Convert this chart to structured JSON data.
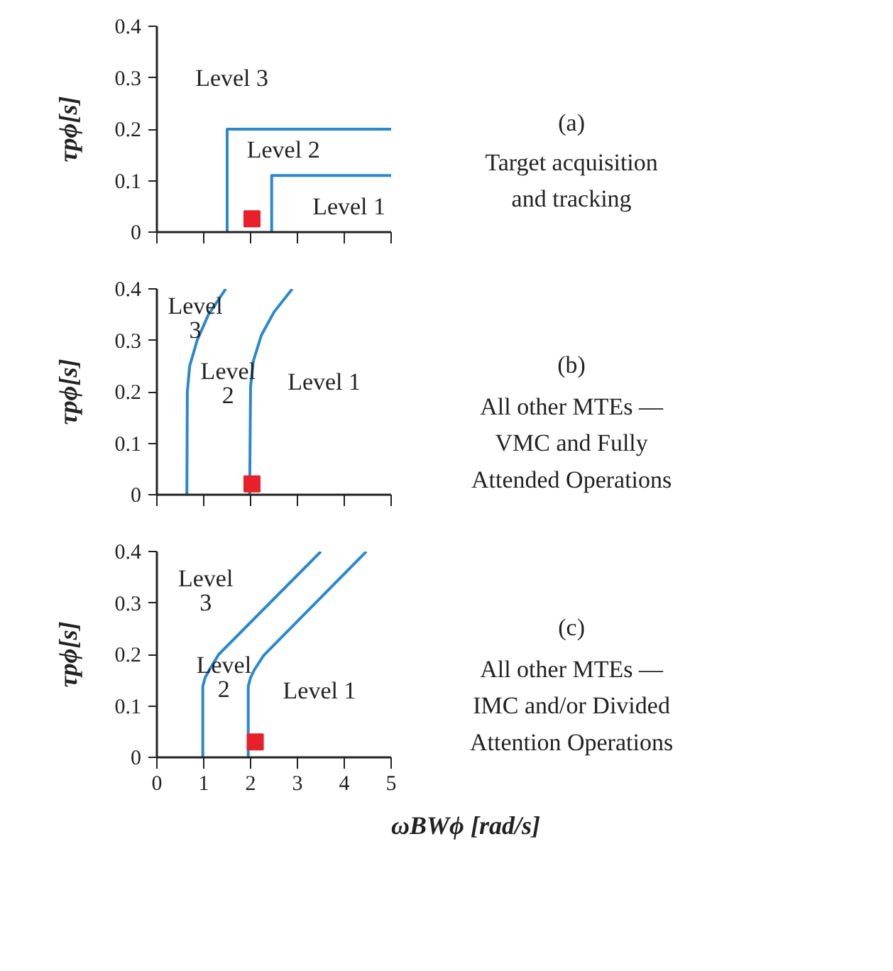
{
  "chart_data": [
    {
      "type": "line",
      "ylabel": "τpϕ[s]",
      "xlim": [
        0,
        5
      ],
      "xticks": [
        0,
        1,
        2,
        3,
        4,
        5
      ],
      "ylim": [
        0,
        0.4
      ],
      "yticks": [
        0,
        0.1,
        0.2,
        0.3,
        0.4
      ],
      "tick_labels": "y",
      "grid": false,
      "series": [
        {
          "color": "#2b88cc",
          "x": [
            1.5,
            1.5,
            5
          ],
          "values": [
            0,
            0.2,
            0.2
          ]
        },
        {
          "color": "#2b88cc",
          "x": [
            2.45,
            2.45,
            5
          ],
          "values": [
            0,
            0.11,
            0.11
          ]
        },
        {
          "type": "scatter",
          "marker": "square",
          "color": "#e8202a",
          "x": [
            2.03
          ],
          "values": [
            0.026
          ]
        }
      ],
      "annotations": [
        "Level 3",
        "Level 2",
        "Level 1",
        "(a)",
        "Target acquisition\nand tracking"
      ]
    },
    {
      "type": "line",
      "ylabel": "τpϕ[s]",
      "xlim": [
        0,
        5
      ],
      "xticks": [
        0,
        1,
        2,
        3,
        4,
        5
      ],
      "ylim": [
        0,
        0.4
      ],
      "yticks": [
        0,
        0.1,
        0.2,
        0.3,
        0.4
      ],
      "tick_labels": "y",
      "grid": false,
      "series": [
        {
          "color": "#2b88cc",
          "x": [
            0.64,
            0.65,
            0.7,
            0.86,
            1.1,
            1.47
          ],
          "values": [
            0,
            0.2,
            0.25,
            0.3,
            0.35,
            0.4
          ]
        },
        {
          "color": "#2b88cc",
          "x": [
            1.98,
            2.0,
            2.06,
            2.23,
            2.5,
            2.89
          ],
          "values": [
            0,
            0.21,
            0.26,
            0.31,
            0.355,
            0.4
          ]
        },
        {
          "type": "scatter",
          "marker": "square",
          "color": "#e8202a",
          "x": [
            2.03
          ],
          "values": [
            0.021
          ]
        }
      ],
      "annotations": [
        "Level\n3",
        "Level\n2",
        "Level 1",
        "(b)",
        "All other MTEs —\nVMC and Fully\nAttended Operations"
      ]
    },
    {
      "type": "line",
      "ylabel": "τpϕ[s]",
      "xlabel": "ωBWϕ [rad/s]",
      "xlim": [
        0,
        5
      ],
      "xticks": [
        0,
        1,
        2,
        3,
        4,
        5
      ],
      "ylim": [
        0,
        0.4
      ],
      "yticks": [
        0,
        0.1,
        0.2,
        0.3,
        0.4
      ],
      "grid": false,
      "series": [
        {
          "color": "#2b88cc",
          "x": [
            0.98,
            0.98,
            1.03,
            1.12,
            1.32,
            3.5
          ],
          "values": [
            0,
            0.138,
            0.155,
            0.17,
            0.2,
            0.4
          ]
        },
        {
          "color": "#2b88cc",
          "x": [
            1.95,
            1.95,
            2.0,
            2.08,
            2.28,
            4.47
          ],
          "values": [
            0,
            0.138,
            0.155,
            0.17,
            0.198,
            0.4
          ]
        },
        {
          "type": "scatter",
          "marker": "square",
          "color": "#e8202a",
          "x": [
            2.1
          ],
          "values": [
            0.03
          ]
        }
      ],
      "annotations": [
        "Level\n3",
        "Level\n2",
        "Level 1",
        "(c)",
        "All other MTEs —\nIMC and/or Divided\nAttention Operations"
      ]
    }
  ]
}
